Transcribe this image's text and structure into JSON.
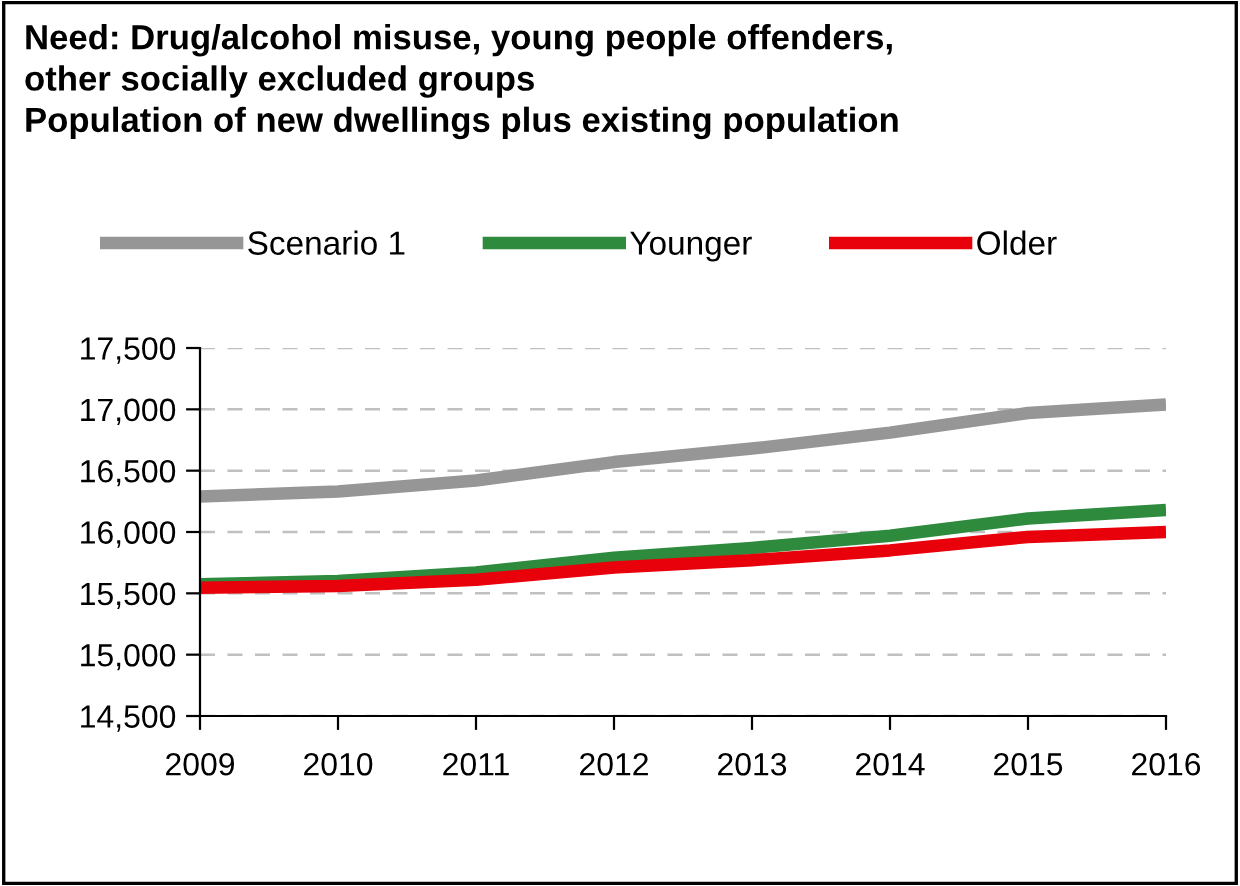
{
  "chart_data": {
    "type": "line",
    "title": "Need: Drug/alcohol misuse, young people offenders,\nother socially excluded groups\nPopulation of new dwellings plus existing population",
    "categories": [
      "2009",
      "2010",
      "2011",
      "2012",
      "2013",
      "2014",
      "2015",
      "2016"
    ],
    "series": [
      {
        "name": "Scenario 1",
        "color": "#969696",
        "values": [
          16290,
          16330,
          16420,
          16570,
          16680,
          16810,
          16970,
          17040
        ]
      },
      {
        "name": "Younger",
        "color": "#2e8b3e",
        "values": [
          15575,
          15600,
          15670,
          15790,
          15870,
          15970,
          16110,
          16180
        ]
      },
      {
        "name": "Older",
        "color": "#e8000b",
        "values": [
          15545,
          15560,
          15610,
          15710,
          15770,
          15850,
          15960,
          16000
        ]
      }
    ],
    "ylim": [
      14500,
      17500
    ],
    "yticks": [
      {
        "value": 14500,
        "label": "14,500"
      },
      {
        "value": 15000,
        "label": "15,000"
      },
      {
        "value": 15500,
        "label": "15,500"
      },
      {
        "value": 16000,
        "label": "16,000"
      },
      {
        "value": 16500,
        "label": "16,500"
      },
      {
        "value": 17000,
        "label": "17,000"
      },
      {
        "value": 17500,
        "label": "17,500"
      }
    ],
    "grid": "y",
    "legend": "top",
    "marker": "none",
    "line_style": "solid"
  }
}
